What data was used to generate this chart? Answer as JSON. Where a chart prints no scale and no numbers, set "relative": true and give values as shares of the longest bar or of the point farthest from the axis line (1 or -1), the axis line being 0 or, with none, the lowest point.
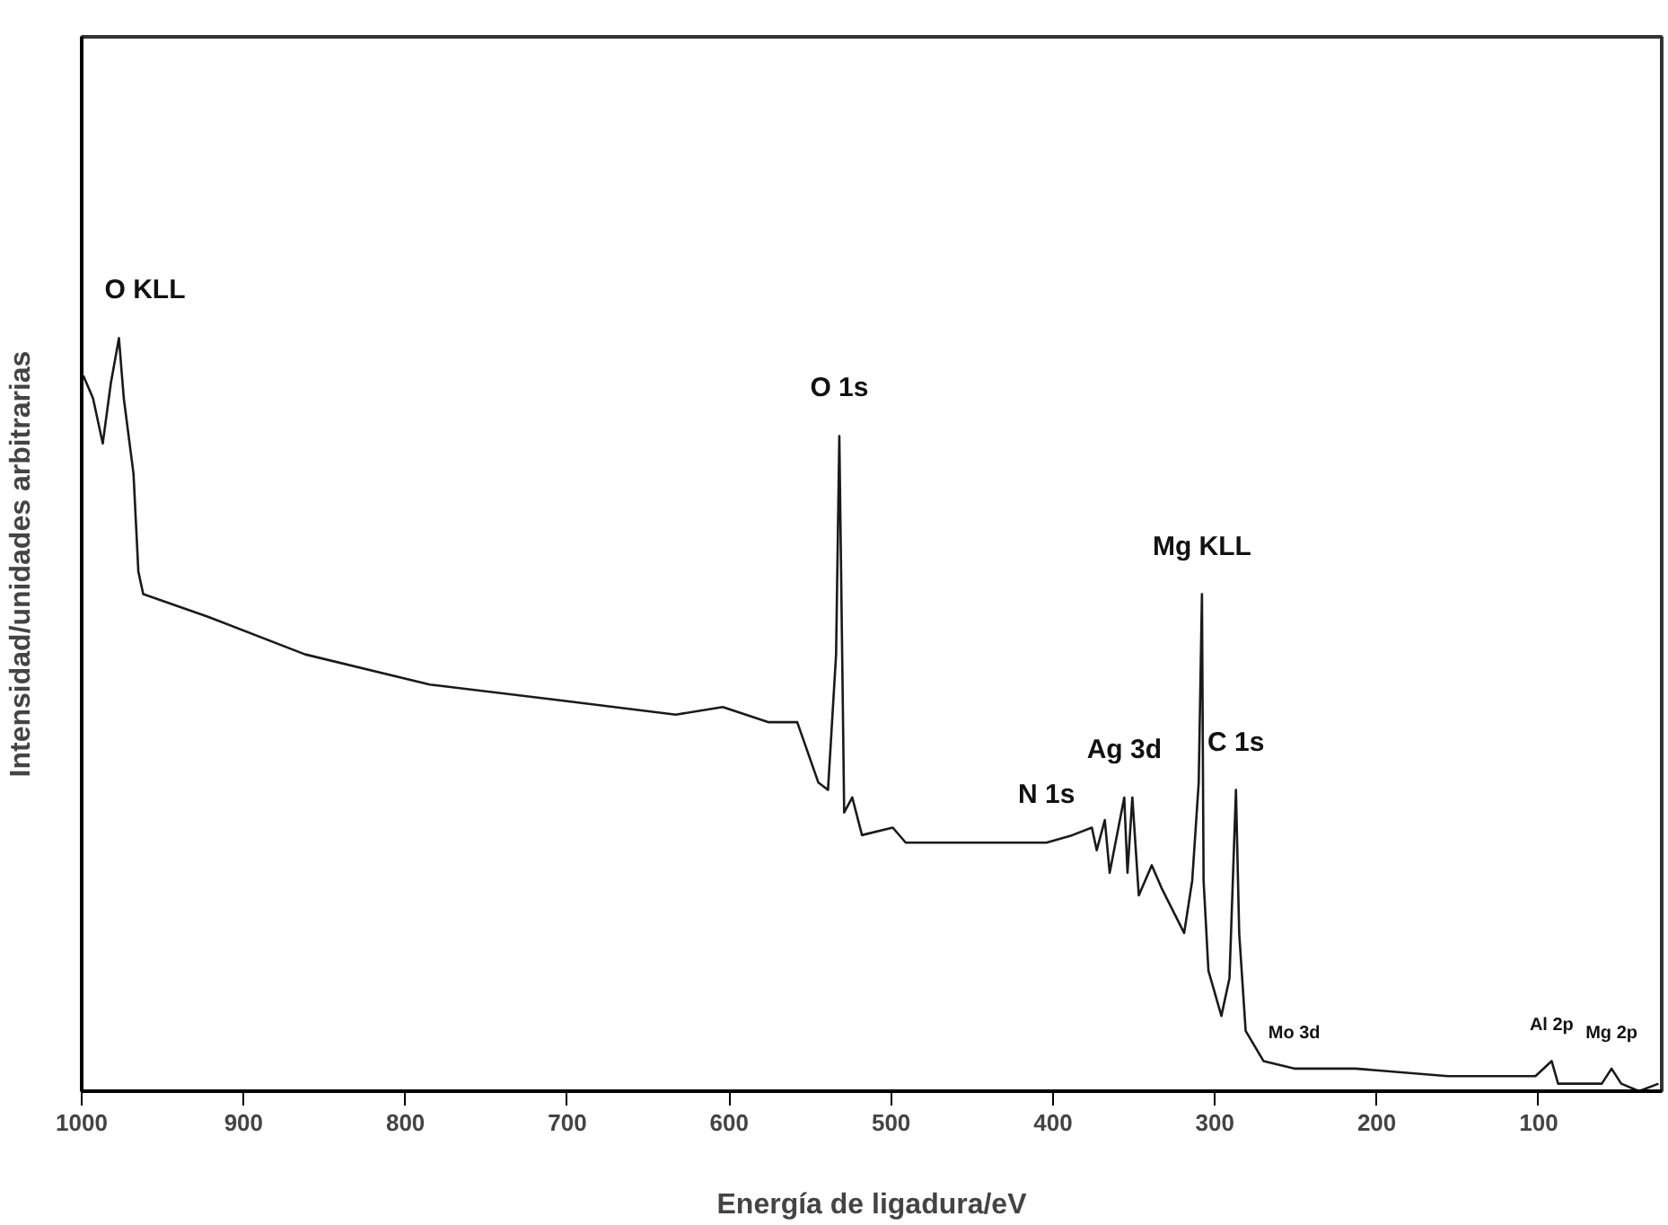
{
  "chart_data": {
    "type": "line",
    "xlabel": "Energía de ligadura/eV",
    "ylabel": "Intensidad/unidades arbitrarias",
    "relative": true,
    "xlim": [
      1000,
      24
    ],
    "xticks": [
      1000,
      900,
      800,
      700,
      600,
      500,
      400,
      300,
      200,
      100
    ],
    "x": [
      999,
      993,
      987,
      982,
      977,
      974,
      968,
      965,
      962,
      922,
      862,
      785,
      708,
      633,
      604,
      576,
      558,
      545,
      539,
      534,
      532,
      530,
      529,
      524,
      518,
      499,
      491,
      450,
      404,
      388,
      376,
      373,
      368,
      365,
      356,
      354,
      351,
      347,
      339,
      333,
      319,
      314,
      310,
      308,
      307,
      304,
      296,
      291,
      287,
      285,
      281,
      270,
      251,
      213,
      156,
      102,
      92,
      88,
      61,
      55,
      49,
      38,
      26
    ],
    "series": [
      {
        "color": "#1a1a1a",
        "values": [
          0.95,
          0.92,
          0.86,
          0.94,
          1.0,
          0.92,
          0.82,
          0.69,
          0.66,
          0.63,
          0.58,
          0.54,
          0.52,
          0.5,
          0.51,
          0.49,
          0.49,
          0.41,
          0.4,
          0.58,
          0.87,
          0.54,
          0.37,
          0.39,
          0.34,
          0.35,
          0.33,
          0.33,
          0.33,
          0.34,
          0.35,
          0.32,
          0.36,
          0.29,
          0.39,
          0.29,
          0.39,
          0.26,
          0.3,
          0.27,
          0.21,
          0.28,
          0.41,
          0.66,
          0.28,
          0.16,
          0.1,
          0.15,
          0.4,
          0.21,
          0.08,
          0.04,
          0.03,
          0.03,
          0.02,
          0.02,
          0.04,
          0.01,
          0.01,
          0.03,
          0.01,
          0.0,
          0.01
        ]
      }
    ],
    "annotations": [
      {
        "text": "O KLL",
        "x": 977,
        "y": 1.0
      },
      {
        "text": "O 1s",
        "x": 532,
        "y": 0.87
      },
      {
        "text": "Mg KLL",
        "x": 308,
        "y": 0.66
      },
      {
        "text": "Ag 3d",
        "x": 356,
        "y": 0.39
      },
      {
        "text": "N 1s",
        "x": 404,
        "y": 0.33
      },
      {
        "text": "C 1s",
        "x": 287,
        "y": 0.4
      },
      {
        "text": "Mo 3d",
        "x": 251,
        "y": 0.03
      },
      {
        "text": "Al 2p",
        "x": 92,
        "y": 0.04
      },
      {
        "text": "Mg 2p",
        "x": 55,
        "y": 0.03
      }
    ]
  }
}
